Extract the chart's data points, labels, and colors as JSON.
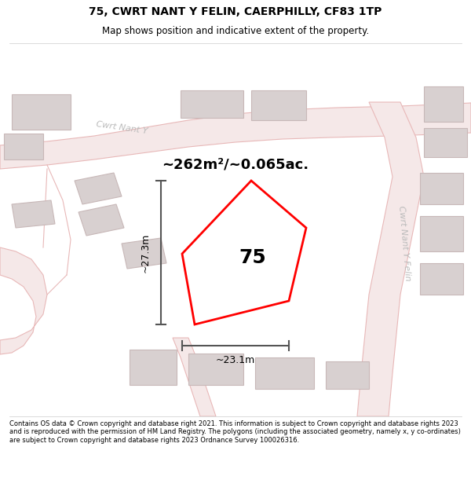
{
  "title": "75, CWRT NANT Y FELIN, CAERPHILLY, CF83 1TP",
  "subtitle": "Map shows position and indicative extent of the property.",
  "footer": "Contains OS data © Crown copyright and database right 2021. This information is subject to Crown copyright and database rights 2023 and is reproduced with the permission of HM Land Registry. The polygons (including the associated geometry, namely x, y co-ordinates) are subject to Crown copyright and database rights 2023 Ordnance Survey 100026316.",
  "area_label": "~262m²/~0.065ac.",
  "plot_number": "75",
  "dim_width": "~23.1m",
  "dim_height": "~27.3m",
  "outline_color": "#ff0000",
  "dim_color": "#555555",
  "road_color": "#e8b8b8",
  "road_fill": "#f5e8e8",
  "building_color": "#d8d0d0",
  "building_edge": "#c8b8b8",
  "road_text_color": "#bbbbbb",
  "map_bg": "#eeeeee",
  "plot_bg": "#ffffff"
}
